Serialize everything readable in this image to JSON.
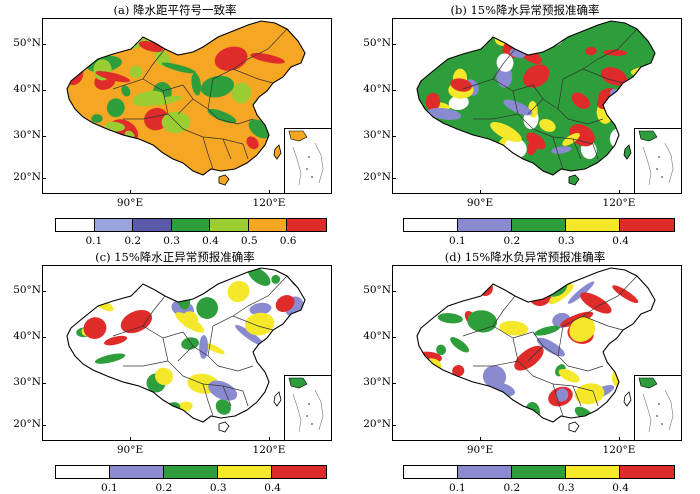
{
  "panels": [
    {
      "title": "(a) 降水距平符号一致率",
      "colors": [
        "#ffffff",
        "#9aa4dc",
        "#5a5aa8",
        "#2e9e3c",
        "#9acd32",
        "#f5a623",
        "#e02b2b"
      ],
      "tick_labels": [
        "0.1",
        "0.2",
        "0.3",
        "0.4",
        "0.5",
        "0.6"
      ],
      "base_fill": "#f5a623",
      "patches": [
        "#9acd32",
        "#e02b2b",
        "#2e9e3c",
        "#9acd32",
        "#e02b2b",
        "#2e9e3c"
      ]
    },
    {
      "title": "(b) 15%降水异常预报准确率",
      "colors": [
        "#ffffff",
        "#8a8ad0",
        "#2e9e3c",
        "#f5e82a",
        "#e02b2b"
      ],
      "tick_labels": [
        "0.1",
        "0.2",
        "0.3",
        "0.4"
      ],
      "base_fill": "#2e9e3c",
      "patches": [
        "#f5e82a",
        "#e02b2b",
        "#8a8ad0",
        "#ffffff",
        "#f5e82a",
        "#e02b2b"
      ]
    },
    {
      "title": "(c) 15%降水正异常预报准确率",
      "colors": [
        "#ffffff",
        "#8a8ad0",
        "#2e9e3c",
        "#f5e82a",
        "#e02b2b"
      ],
      "tick_labels": [
        "0.1",
        "0.2",
        "0.3",
        "0.4"
      ],
      "base_fill": "#ffffff",
      "patches": [
        "#2e9e3c",
        "#f5e82a",
        "#8a8ad0",
        "#2e9e3c",
        "#f5e82a",
        "#e02b2b"
      ]
    },
    {
      "title": "(d) 15%降水负异常预报准确率",
      "colors": [
        "#ffffff",
        "#8a8ad0",
        "#2e9e3c",
        "#f5e82a",
        "#e02b2b"
      ],
      "tick_labels": [
        "0.1",
        "0.2",
        "0.3",
        "0.4"
      ],
      "base_fill": "#ffffff",
      "patches": [
        "#2e9e3c",
        "#e02b2b",
        "#f5e82a",
        "#8a8ad0",
        "#2e9e3c",
        "#e02b2b"
      ]
    }
  ],
  "axes": {
    "y_labels": [
      "50°N",
      "40°N",
      "30°N",
      "20°N"
    ],
    "x_labels": [
      "90°E",
      "120°E"
    ]
  }
}
